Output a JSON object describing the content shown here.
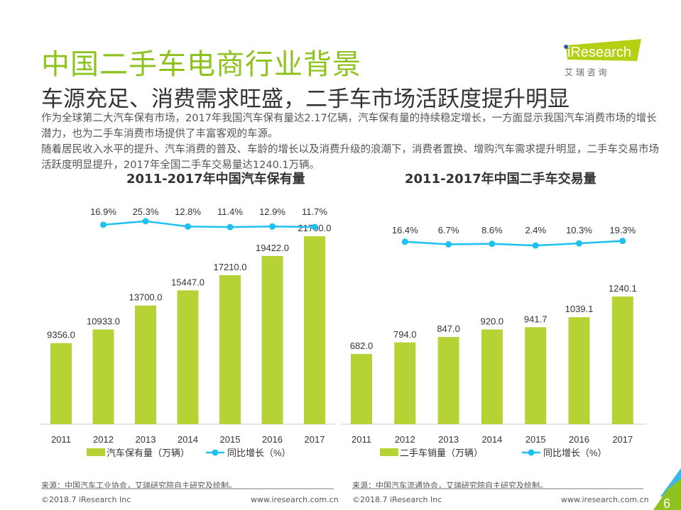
{
  "header": {
    "title": "中国二手车电商行业背景",
    "subtitle": "车源充足、消费需求旺盛，二手车市场活跃度提升明显",
    "paragraphs": [
      "作为全球第二大汽车保有市场，2017年我国汽车保有量达2.17亿辆，汽车保有量的持续稳定增长，一方面显示我国汽车消费市场的增长潜力，也为二手车消费市场提供了丰富客观的车源。",
      "随着居民收入水平的提升、汽车消费的普及、车龄的增长以及消费升级的浪潮下，消费者置换、增购汽车需求提升明显，二手车交易市场活跃度明显提升，2017年全国二手车交易量达1240.1万辆。"
    ]
  },
  "logo": {
    "text": "iResearch",
    "sub": "艾 瑞 咨 询",
    "color": "#b5cf12"
  },
  "colors": {
    "bar": "#b5d334",
    "line": "#1ec0ef",
    "title": "#8dc21f"
  },
  "chart_data": [
    {
      "type": "bar+line",
      "title": "2011-2017年中国汽车保有量",
      "categories": [
        "2011",
        "2012",
        "2013",
        "2014",
        "2015",
        "2016",
        "2017"
      ],
      "series": [
        {
          "name": "汽车保有量（万辆）",
          "type": "bar",
          "values": [
            9356.0,
            10933.0,
            13700.0,
            15447.0,
            17210.0,
            19422.0,
            21700.0
          ],
          "labels": [
            "9356.0",
            "10933.0",
            "13700.0",
            "15447.0",
            "17210.0",
            "19422.0",
            "21700.0"
          ]
        },
        {
          "name": "同比增长（%）",
          "type": "line",
          "values": [
            null,
            16.9,
            25.3,
            12.8,
            11.4,
            12.9,
            11.7
          ],
          "labels": [
            "",
            "16.9%",
            "25.3%",
            "12.8%",
            "11.4%",
            "12.9%",
            "11.7%"
          ]
        }
      ],
      "source": "来源：中国汽车工业协会，艾瑞研究院自主研究及绘制。"
    },
    {
      "type": "bar+line",
      "title": "2011-2017年中国二手车交易量",
      "categories": [
        "2011",
        "2012",
        "2013",
        "2014",
        "2015",
        "2016",
        "2017"
      ],
      "series": [
        {
          "name": "二手车销量（万辆）",
          "type": "bar",
          "values": [
            682.0,
            794.0,
            847.0,
            920.0,
            941.7,
            1039.1,
            1240.1
          ],
          "labels": [
            "682.0",
            "794.0",
            "847.0",
            "920.0",
            "941.7",
            "1039.1",
            "1240.1"
          ]
        },
        {
          "name": "同比增长（%）",
          "type": "line",
          "values": [
            null,
            16.4,
            6.7,
            8.6,
            2.4,
            10.3,
            19.3
          ],
          "labels": [
            "",
            "16.4%",
            "6.7%",
            "8.6%",
            "2.4%",
            "10.3%",
            "19.3%"
          ]
        }
      ],
      "source": "来源：中国汽车流通协会，艾瑞研究院自主研究及绘制。"
    }
  ],
  "footer": {
    "copyright": "©2018.7 iResearch Inc",
    "url": "www.iresearch.com.cn",
    "page": "6"
  }
}
